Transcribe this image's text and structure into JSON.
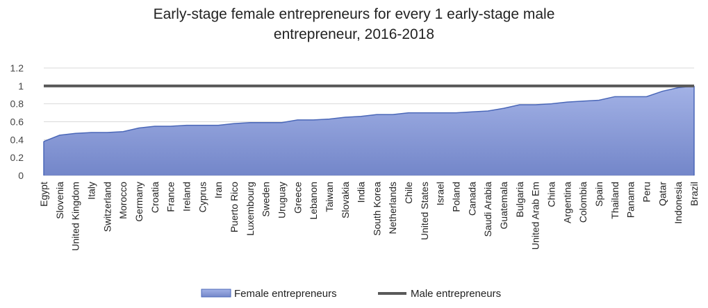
{
  "chart_data": {
    "type": "area",
    "title_lines": [
      "Early-stage female entrepreneurs for every 1 early-stage male",
      "entrepreneur, 2016-2018"
    ],
    "ylim": [
      0,
      1.2
    ],
    "y_ticks": [
      "0",
      "0.2",
      "0.4",
      "0.6",
      "0.8",
      "1",
      "1.2"
    ],
    "y_tick_values": [
      0,
      0.2,
      0.4,
      0.6,
      0.8,
      1.0,
      1.2
    ],
    "grid": true,
    "legend_position": "bottom",
    "categories": [
      "Egypt",
      "Slovenia",
      "United Kingdom",
      "Italy",
      "Switzerland",
      "Morocco",
      "Germany",
      "Croatia",
      "France",
      "Ireland",
      "Cyprus",
      "Iran",
      "Puerto Rico",
      "Luxembourg",
      "Sweden",
      "Uruguay",
      "Greece",
      "Lebanon",
      "Taiwan",
      "Slovakia",
      "India",
      "South Korea",
      "Netherlands",
      "Chile",
      "United States",
      "Israel",
      "Poland",
      "Canada",
      "Saudi Arabia",
      "Guatemala",
      "Bulgaria",
      "United Arab Em",
      "China",
      "Argentina",
      "Colombia",
      "Spain",
      "Thailand",
      "Panama",
      "Peru",
      "Qatar",
      "Indonesia",
      "Brazil"
    ],
    "series": [
      {
        "name": "Female entrepreneurs",
        "type": "area",
        "color": "#8b9ed8",
        "values": [
          0.38,
          0.45,
          0.47,
          0.48,
          0.48,
          0.49,
          0.53,
          0.55,
          0.55,
          0.56,
          0.56,
          0.56,
          0.58,
          0.59,
          0.59,
          0.59,
          0.62,
          0.62,
          0.63,
          0.65,
          0.66,
          0.68,
          0.68,
          0.7,
          0.7,
          0.7,
          0.7,
          0.71,
          0.72,
          0.75,
          0.79,
          0.79,
          0.8,
          0.82,
          0.83,
          0.84,
          0.88,
          0.88,
          0.88,
          0.94,
          0.98,
          1.0
        ]
      },
      {
        "name": "Male entrepreneurs",
        "type": "line",
        "color": "#595959",
        "values": [
          1,
          1,
          1,
          1,
          1,
          1,
          1,
          1,
          1,
          1,
          1,
          1,
          1,
          1,
          1,
          1,
          1,
          1,
          1,
          1,
          1,
          1,
          1,
          1,
          1,
          1,
          1,
          1,
          1,
          1,
          1,
          1,
          1,
          1,
          1,
          1,
          1,
          1,
          1,
          1,
          1,
          1
        ]
      }
    ]
  },
  "colors": {
    "area_fill_top": "#a3b2e6",
    "area_fill_bottom": "#7386c9",
    "area_stroke": "#4a67b8",
    "male_line": "#595959",
    "grid": "#d9d9d9"
  }
}
